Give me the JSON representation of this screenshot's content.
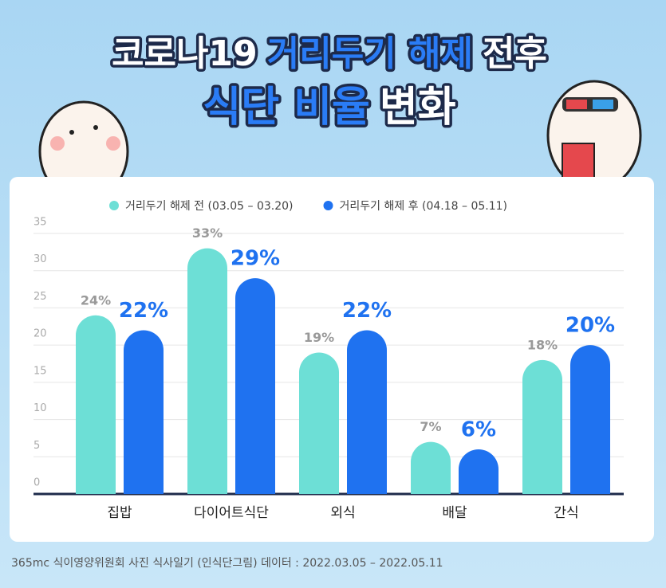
{
  "chart_data": {
    "type": "bar",
    "title_lines": [
      [
        {
          "text": "코로나19",
          "highlight": false
        },
        {
          "text": "거리두기 해제",
          "highlight": true
        },
        {
          "text": "전후",
          "highlight": false
        }
      ],
      [
        {
          "text": "식단 비율",
          "highlight": true
        },
        {
          "text": "변화",
          "highlight": false
        }
      ]
    ],
    "categories": [
      "집밥",
      "다이어트식단",
      "외식",
      "배달",
      "간식"
    ],
    "series": [
      {
        "name": "거리두기 해제 전 (03.05 – 03.20)",
        "color": "#6ddfd6",
        "values": [
          24,
          33,
          19,
          7,
          18
        ],
        "value_labels": [
          "24%",
          "33%",
          "19%",
          "7%",
          "18%"
        ]
      },
      {
        "name": "거리두기 해제 후 (04.18 – 05.11)",
        "color": "#1f72f0",
        "values": [
          22,
          29,
          22,
          6,
          20
        ],
        "value_labels": [
          "22%",
          "29%",
          "22%",
          "6%",
          "20%"
        ]
      }
    ],
    "ylim": [
      0,
      35
    ],
    "yticks": [
      0,
      5,
      10,
      15,
      20,
      25,
      30,
      35
    ],
    "grid": true,
    "legend": "top",
    "source": "365mc 식이영양위원회 사진 식사일기 (인식단그림) 데이터 : 2022.03.05 – 2022.05.11"
  }
}
